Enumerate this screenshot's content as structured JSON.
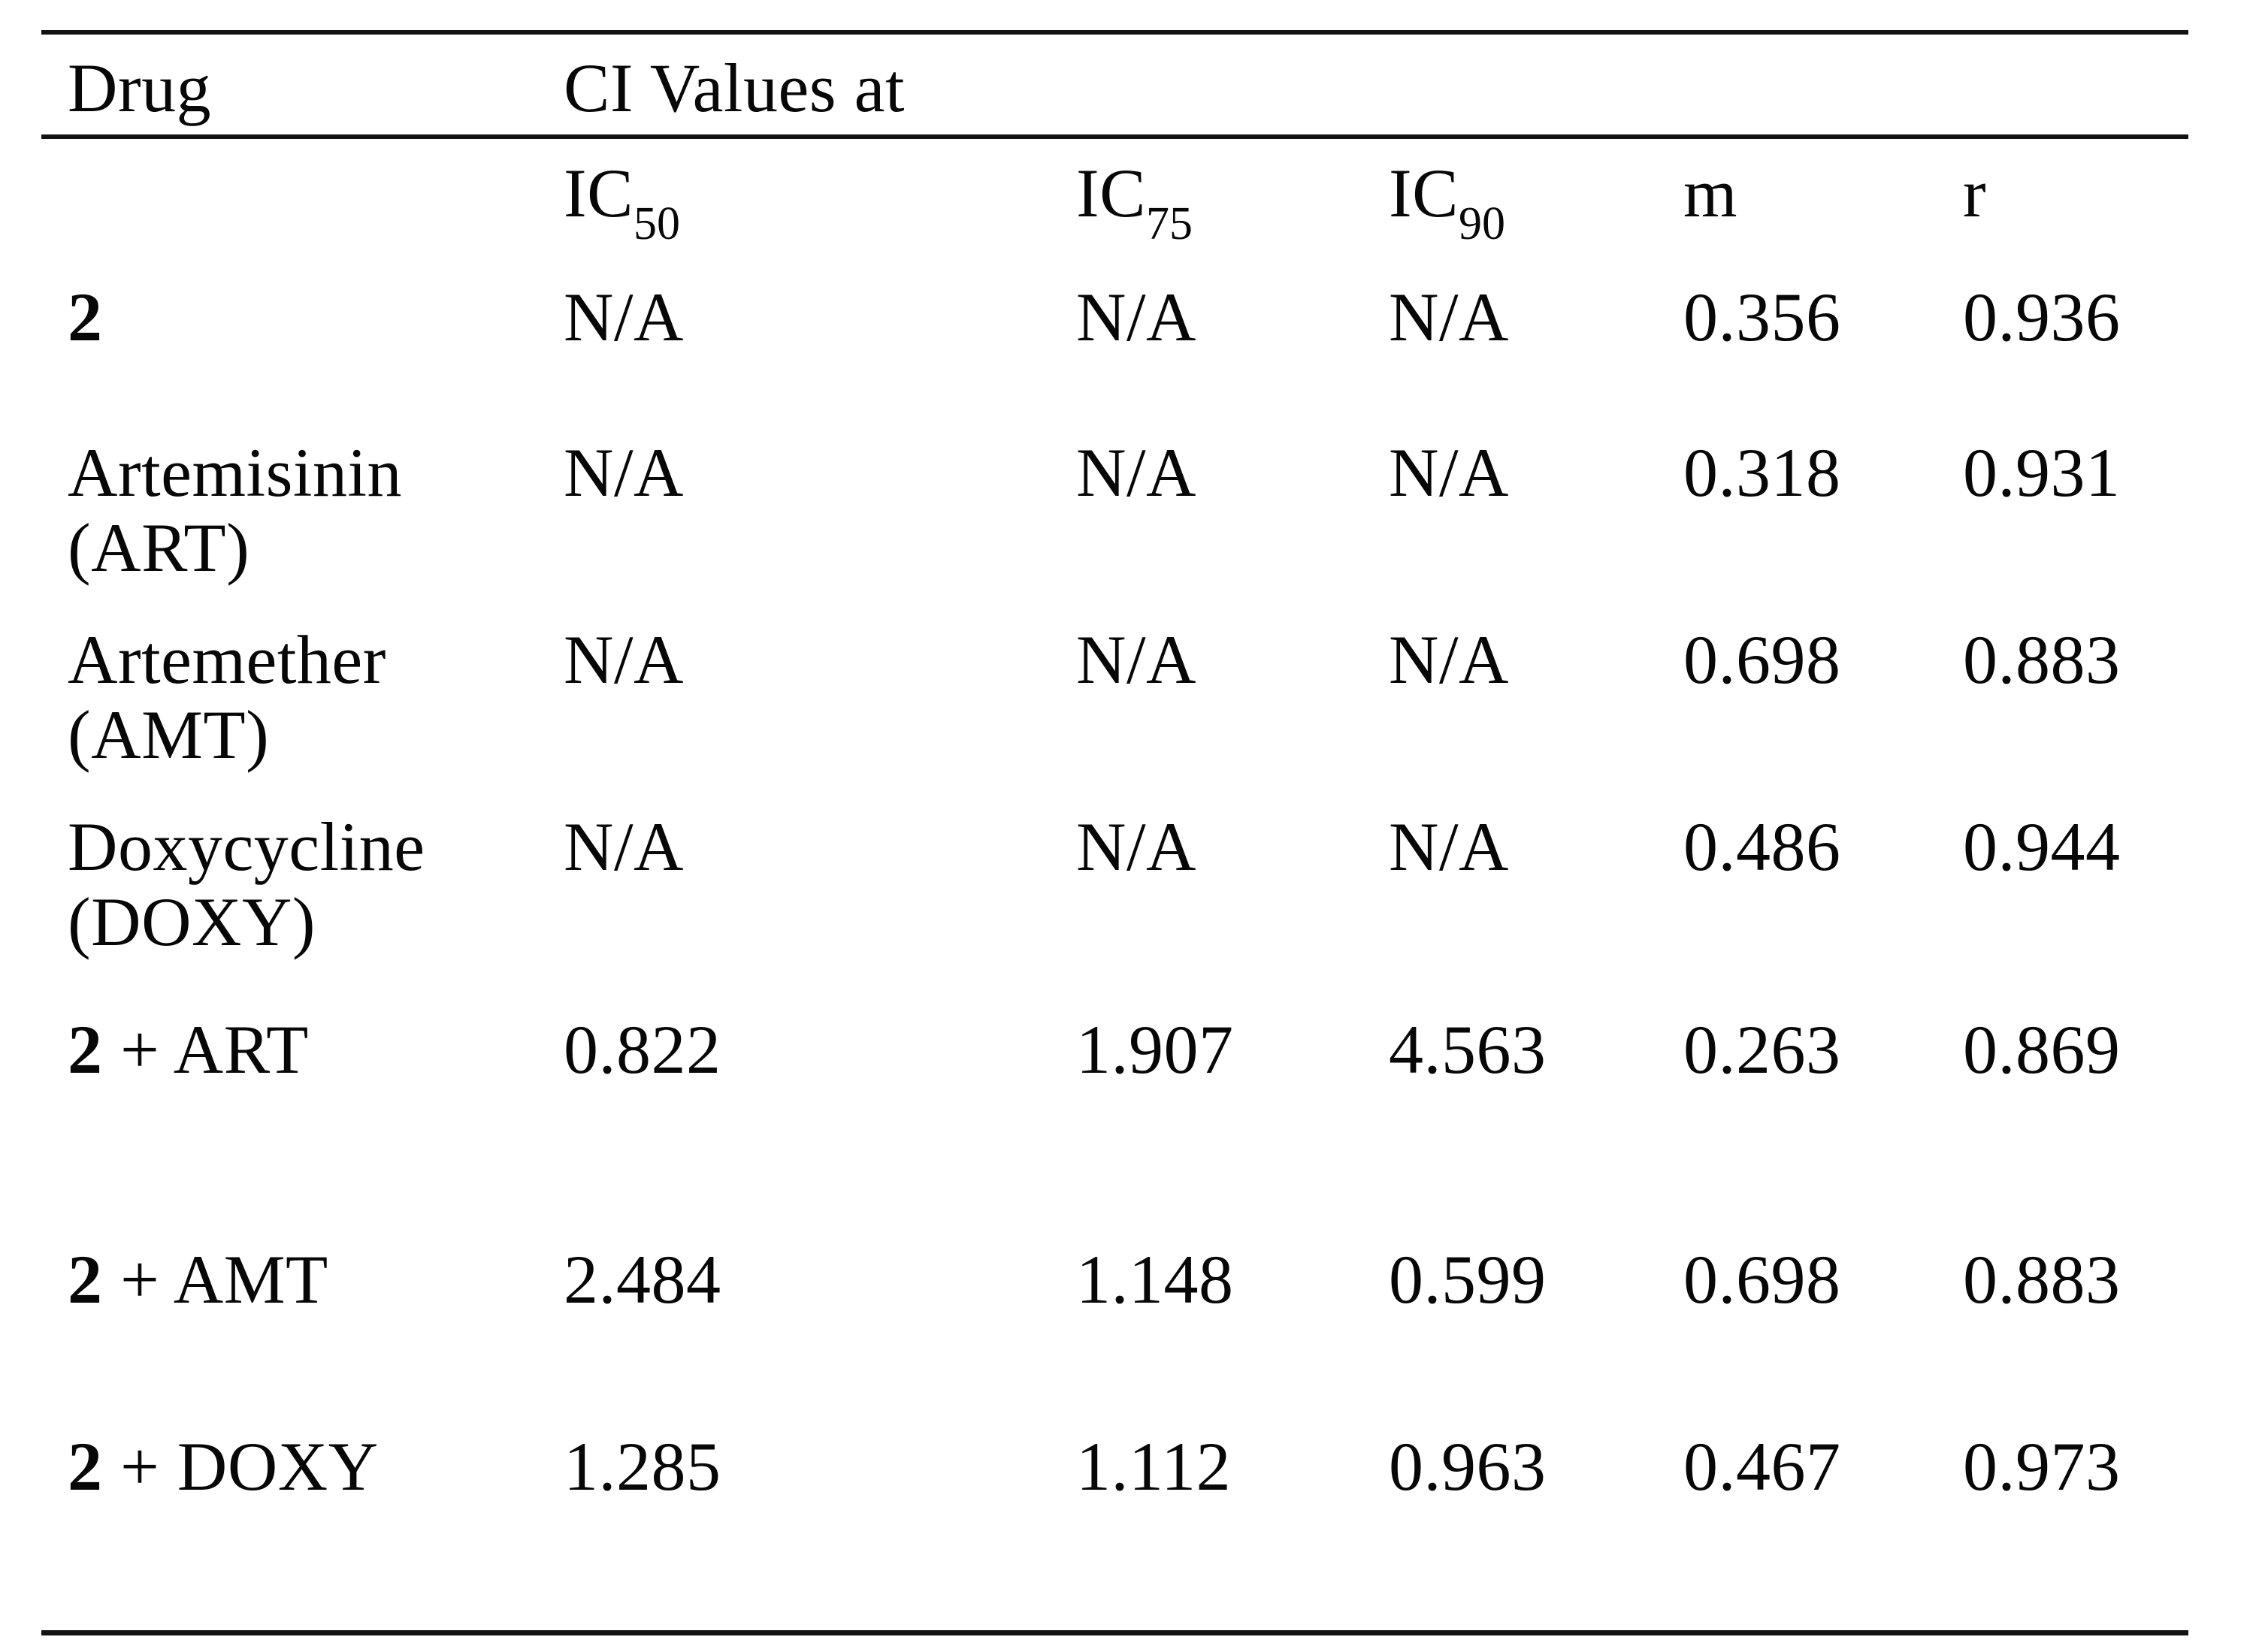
{
  "colors": {
    "background": "#ffffff",
    "text": "#070707",
    "rule": "#121212"
  },
  "table": {
    "drug_column_header": "Drug",
    "group_header": "CI Values at",
    "subheaders": [
      {
        "base": "IC",
        "sub": "50"
      },
      {
        "base": "IC",
        "sub": "75"
      },
      {
        "base": "IC",
        "sub": "90"
      },
      {
        "base": "m",
        "sub": ""
      },
      {
        "base": "r",
        "sub": ""
      }
    ],
    "rows": [
      {
        "drug_bold": "2",
        "drug_rest": "",
        "drug_line2": "",
        "values": [
          "N/A",
          "N/A",
          "N/A",
          "0.356",
          "0.936"
        ]
      },
      {
        "drug_bold": "",
        "drug_rest": "Artemisinin",
        "drug_line2": "(ART)",
        "values": [
          "N/A",
          "N/A",
          "N/A",
          "0.318",
          "0.931"
        ]
      },
      {
        "drug_bold": "",
        "drug_rest": "Artemether",
        "drug_line2": "(AMT)",
        "values": [
          "N/A",
          "N/A",
          "N/A",
          "0.698",
          "0.883"
        ]
      },
      {
        "drug_bold": "",
        "drug_rest": "Doxycycline",
        "drug_line2": "(DOXY)",
        "values": [
          "N/A",
          "N/A",
          "N/A",
          "0.486",
          "0.944"
        ]
      },
      {
        "drug_bold": "2",
        "drug_rest": " + ART",
        "drug_line2": "",
        "values": [
          "0.822",
          "1.907",
          "4.563",
          "0.263",
          "0.869"
        ]
      },
      {
        "drug_bold": "2",
        "drug_rest": " + AMT",
        "drug_line2": "",
        "values": [
          "2.484",
          "1.148",
          "0.599",
          "0.698",
          "0.883"
        ]
      },
      {
        "drug_bold": "2",
        "drug_rest": " + DOXY",
        "drug_line2": "",
        "values": [
          "1.285",
          "1.112",
          "0.963",
          "0.467",
          "0.973"
        ]
      }
    ]
  }
}
